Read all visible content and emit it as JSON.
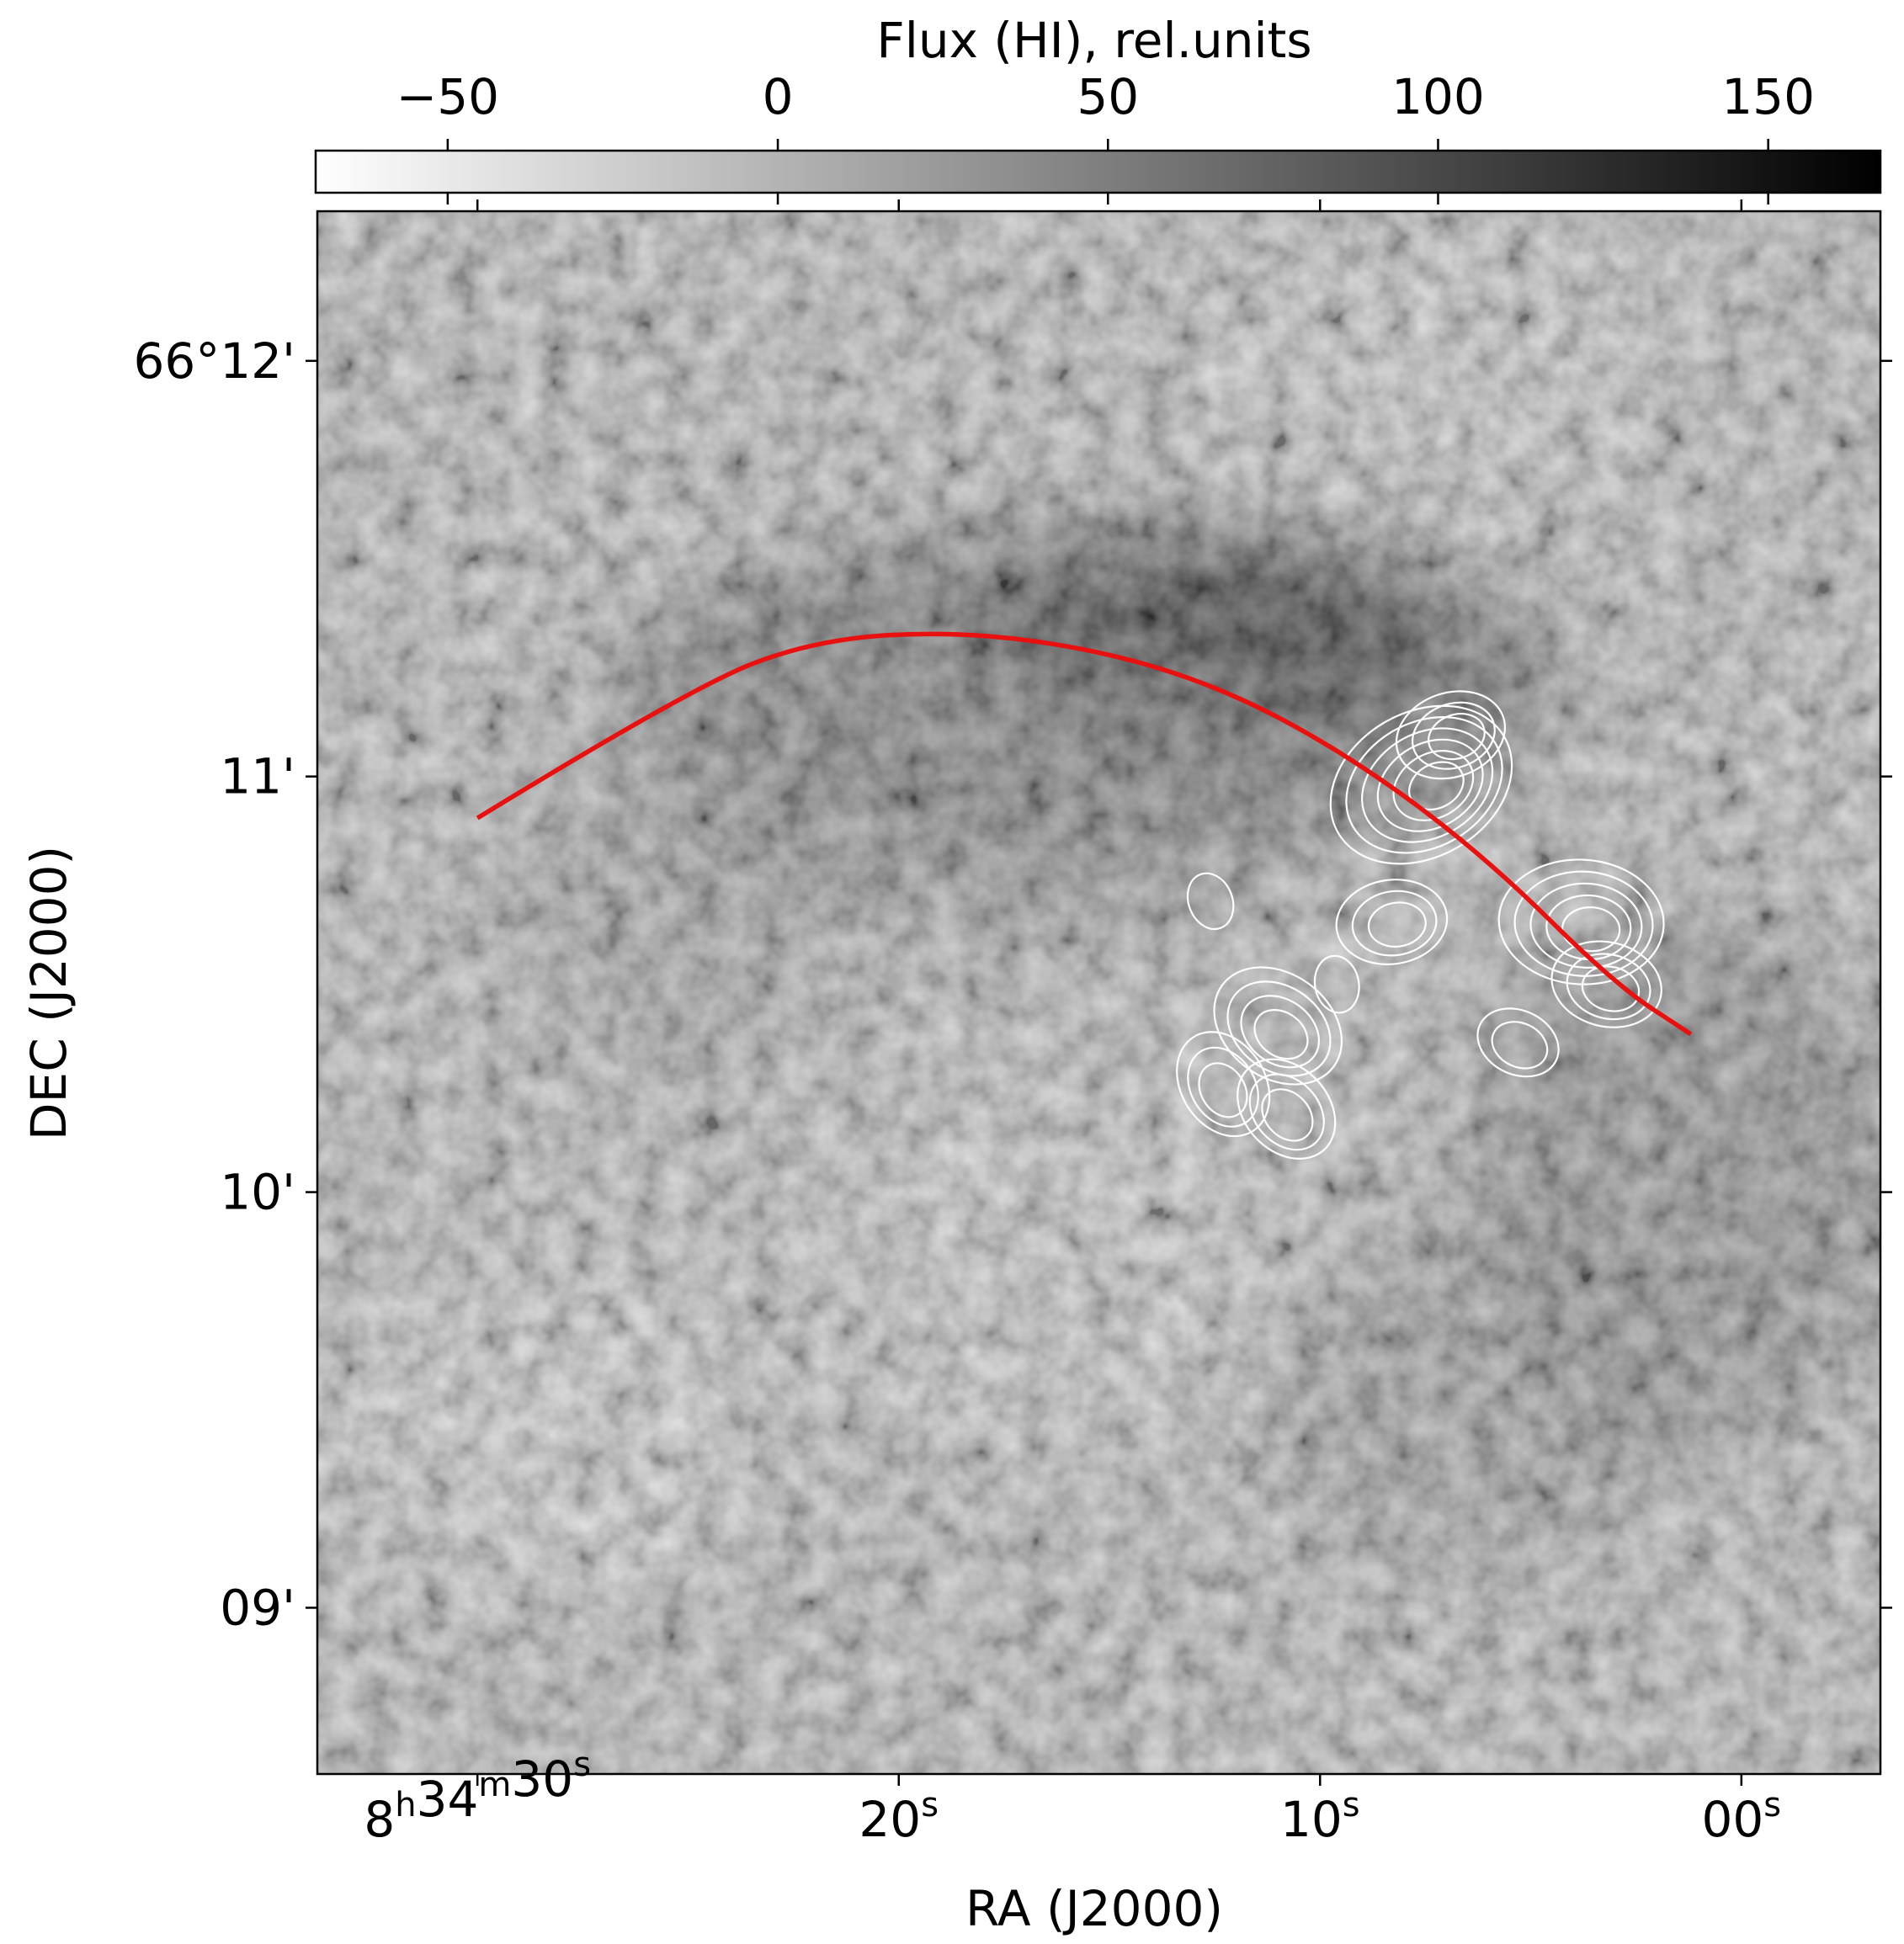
{
  "chart_data": {
    "type": "heatmap",
    "title": "",
    "colorbar": {
      "label": "Flux (HI), rel.units",
      "placement": "top",
      "range": [
        -70,
        167
      ],
      "ticks": [
        -50,
        0,
        50,
        100,
        150
      ],
      "tick_labels": [
        "−50",
        "0",
        "50",
        "100",
        "150"
      ],
      "colormap": [
        "#ffffff",
        "#000000"
      ]
    },
    "xlabel": "RA (J2000)",
    "ylabel": "DEC (J2000)",
    "x_axis": {
      "unit": "seconds of RA past 8h34m00s",
      "range": [
        33.8,
        -3.3
      ],
      "ticks": [
        {
          "value": 30,
          "base": "8",
          "sup1": "h",
          "mid": "34",
          "sup2": "m",
          "sec": "30",
          "sup3": "s"
        },
        {
          "value": 20,
          "sec": "20",
          "sup3": "s"
        },
        {
          "value": 10,
          "sec": "10",
          "sup3": "s"
        },
        {
          "value": 0,
          "sec": "00",
          "sup3": "s"
        }
      ]
    },
    "y_axis": {
      "unit": "arcmin past 66°",
      "range": [
        8.6,
        12.36
      ],
      "ticks": [
        {
          "value": 12,
          "label": "66°12'"
        },
        {
          "value": 11,
          "label": "11'"
        },
        {
          "value": 10,
          "label": "10'"
        },
        {
          "value": 9,
          "label": "09'"
        }
      ]
    },
    "image_description": "grey-scale HI flux map with a dark arc-shaped emission ridge across the upper middle and a fainter dark region to the lower right",
    "overlays": [
      {
        "name": "arc",
        "color": "#e8110f",
        "kind": "line",
        "points": [
          {
            "ra": 30.0,
            "dec": 10.9
          },
          {
            "ra": 25.0,
            "dec": 11.21
          },
          {
            "ra": 22.0,
            "dec": 11.33
          },
          {
            "ra": 18.5,
            "dec": 11.35
          },
          {
            "ra": 15.0,
            "dec": 11.3
          },
          {
            "ra": 12.0,
            "dec": 11.2
          },
          {
            "ra": 9.0,
            "dec": 11.03
          },
          {
            "ra": 6.0,
            "dec": 10.8
          },
          {
            "ra": 3.0,
            "dec": 10.5
          },
          {
            "ra": 1.2,
            "dec": 10.38
          }
        ]
      },
      {
        "name": "contours",
        "color": "#ffffff",
        "kind": "contour-clumps",
        "clumps": [
          {
            "ra": 7.6,
            "dec": 10.98,
            "levels": 6
          },
          {
            "ra": 6.9,
            "dec": 11.1,
            "levels": 3
          },
          {
            "ra": 8.3,
            "dec": 10.65,
            "levels": 3
          },
          {
            "ra": 3.8,
            "dec": 10.65,
            "levels": 5
          },
          {
            "ra": 3.2,
            "dec": 10.5,
            "levels": 3
          },
          {
            "ra": 5.3,
            "dec": 10.36,
            "levels": 2
          },
          {
            "ra": 11.0,
            "dec": 10.4,
            "levels": 4
          },
          {
            "ra": 10.8,
            "dec": 10.2,
            "levels": 3
          },
          {
            "ra": 12.3,
            "dec": 10.26,
            "levels": 3
          },
          {
            "ra": 12.6,
            "dec": 10.7,
            "levels": 1
          },
          {
            "ra": 9.6,
            "dec": 10.5,
            "levels": 1
          }
        ]
      }
    ],
    "grid": false
  }
}
